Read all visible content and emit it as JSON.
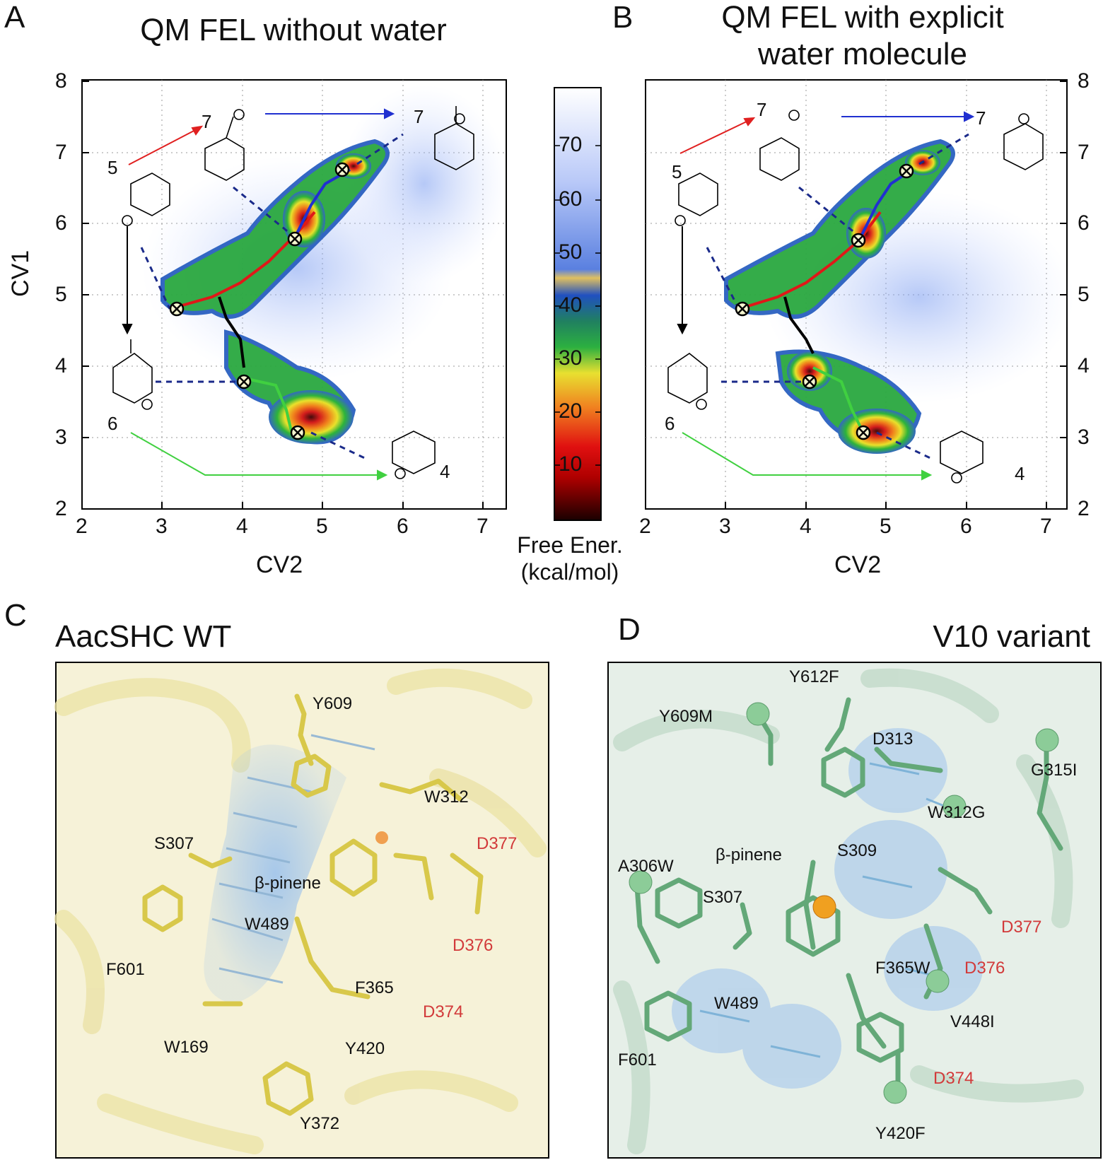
{
  "panels": {
    "A": {
      "letter": "A",
      "title": "QM FEL without water"
    },
    "B": {
      "letter": "B",
      "title_line1": "QM FEL with explicit",
      "title_line2": "water molecule"
    },
    "C": {
      "letter": "C",
      "title": "AacSHC WT"
    },
    "D": {
      "letter": "D",
      "title": "V10 variant"
    }
  },
  "axes": {
    "xlabel": "CV2",
    "ylabel": "CV1",
    "x_ticks": [
      "2",
      "3",
      "4",
      "5",
      "6",
      "7"
    ],
    "y_ticks": [
      "2",
      "3",
      "4",
      "5",
      "6",
      "7",
      "8"
    ]
  },
  "colorbar": {
    "label_line1": "Free Ener.",
    "label_line2": "(kcal/mol)",
    "ticks": [
      "70",
      "60",
      "50",
      "40",
      "30",
      "20",
      "10"
    ]
  },
  "state_labels": [
    "5",
    "7",
    "7",
    "6",
    "4"
  ],
  "residues_C": {
    "black": [
      "Y609",
      "W312",
      "S307",
      "β-pinene",
      "W489",
      "F601",
      "F365",
      "W169",
      "Y420",
      "Y372"
    ],
    "red": [
      "D377",
      "D376",
      "D374"
    ]
  },
  "residues_D": {
    "black": [
      "Y612F",
      "Y609M",
      "D313",
      "G315I",
      "W312G",
      "S309",
      "β-pinene",
      "A306W",
      "S307",
      "F365W",
      "W489",
      "V448I",
      "F601",
      "Y420F"
    ],
    "red": [
      "D377",
      "D376",
      "D374"
    ]
  },
  "chart_data": [
    {
      "type": "heatmap",
      "title": "QM FEL without water",
      "xlabel": "CV2",
      "ylabel": "CV1",
      "xlim": [
        2,
        7.3
      ],
      "ylim": [
        2,
        8
      ],
      "colorbar": {
        "label": "Free Ener. (kcal/mol)",
        "range": [
          0,
          80
        ]
      },
      "minima": [
        {
          "state": "5",
          "x": 3.2,
          "y": 4.85
        },
        {
          "state": "7",
          "x": 4.65,
          "y": 5.8
        },
        {
          "state": "7",
          "x": 5.25,
          "y": 6.75
        },
        {
          "state": "6",
          "x": 4.0,
          "y": 3.8
        },
        {
          "state": "4",
          "x": 4.7,
          "y": 3.1
        }
      ]
    },
    {
      "type": "heatmap",
      "title": "QM FEL with explicit water molecule",
      "xlabel": "CV2",
      "ylabel": "CV1",
      "xlim": [
        2,
        7.3
      ],
      "ylim": [
        2,
        8
      ],
      "colorbar": {
        "label": "Free Ener. (kcal/mol)",
        "range": [
          0,
          80
        ]
      },
      "minima": [
        {
          "state": "5",
          "x": 3.2,
          "y": 4.85
        },
        {
          "state": "7",
          "x": 4.65,
          "y": 5.8
        },
        {
          "state": "7",
          "x": 5.25,
          "y": 6.75
        },
        {
          "state": "6",
          "x": 4.0,
          "y": 3.8
        },
        {
          "state": "4",
          "x": 4.7,
          "y": 3.1
        }
      ]
    }
  ]
}
